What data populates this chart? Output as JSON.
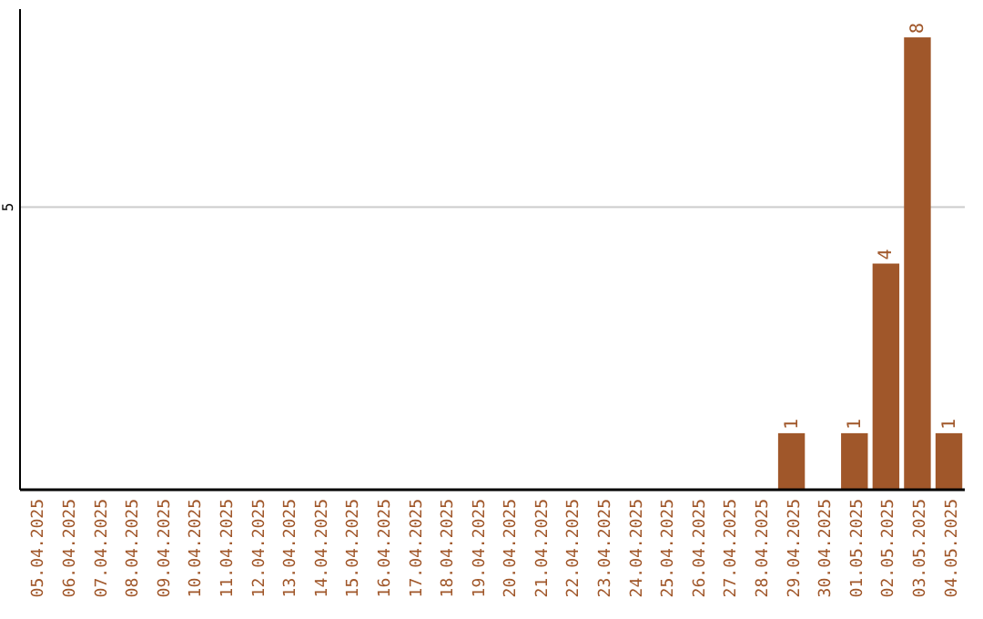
{
  "chart_data": {
    "type": "bar",
    "categories": [
      "05.04.2025",
      "06.04.2025",
      "07.04.2025",
      "08.04.2025",
      "09.04.2025",
      "10.04.2025",
      "11.04.2025",
      "12.04.2025",
      "13.04.2025",
      "14.04.2025",
      "15.04.2025",
      "16.04.2025",
      "17.04.2025",
      "18.04.2025",
      "19.04.2025",
      "20.04.2025",
      "21.04.2025",
      "22.04.2025",
      "23.04.2025",
      "24.04.2025",
      "25.04.2025",
      "26.04.2025",
      "27.04.2025",
      "28.04.2025",
      "29.04.2025",
      "30.04.2025",
      "01.05.2025",
      "02.05.2025",
      "03.05.2025",
      "04.05.2025"
    ],
    "values": [
      null,
      null,
      null,
      null,
      null,
      null,
      null,
      null,
      null,
      null,
      null,
      null,
      null,
      null,
      null,
      null,
      null,
      null,
      null,
      null,
      null,
      null,
      null,
      null,
      1,
      null,
      1,
      4,
      8,
      1
    ],
    "data_labels": true,
    "color": "#a0572a",
    "ylim": [
      0,
      8.5
    ],
    "yticks": [
      5
    ],
    "grid": "y"
  }
}
